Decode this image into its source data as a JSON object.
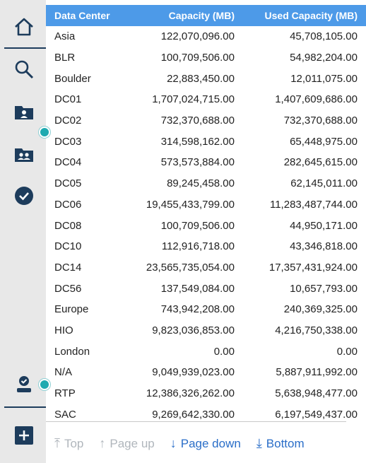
{
  "table": {
    "headers": [
      "Data Center",
      "Capacity (MB)",
      "Used Capacity (MB)"
    ],
    "rows": [
      [
        "Asia",
        "122,070,096.00",
        "45,708,105.00"
      ],
      [
        "BLR",
        "100,709,506.00",
        "54,982,204.00"
      ],
      [
        "Boulder",
        "22,883,450.00",
        "12,011,075.00"
      ],
      [
        "DC01",
        "1,707,024,715.00",
        "1,407,609,686.00"
      ],
      [
        "DC02",
        "732,370,688.00",
        "732,370,688.00"
      ],
      [
        "DC03",
        "314,598,162.00",
        "65,448,975.00"
      ],
      [
        "DC04",
        "573,573,884.00",
        "282,645,615.00"
      ],
      [
        "DC05",
        "89,245,458.00",
        "62,145,011.00"
      ],
      [
        "DC06",
        "19,455,433,799.00",
        "11,283,487,744.00"
      ],
      [
        "DC08",
        "100,709,506.00",
        "44,950,171.00"
      ],
      [
        "DC10",
        "112,916,718.00",
        "43,346,818.00"
      ],
      [
        "DC14",
        "23,565,735,054.00",
        "17,357,431,924.00"
      ],
      [
        "DC56",
        "137,549,084.00",
        "10,657,793.00"
      ],
      [
        "Europe",
        "743,942,208.00",
        "240,369,325.00"
      ],
      [
        "HIO",
        "9,823,036,853.00",
        "4,216,750,338.00"
      ],
      [
        "London",
        "0.00",
        "0.00"
      ],
      [
        "N/A",
        "9,049,939,023.00",
        "5,887,911,992.00"
      ],
      [
        "RTP",
        "12,386,326,262.00",
        "5,638,948,477.00"
      ],
      [
        "SAC",
        "9,269,642,330.00",
        "6,197,549,437.00"
      ]
    ]
  },
  "pagination": {
    "top": "Top",
    "page_up": "Page up",
    "page_down": "Page down",
    "bottom": "Bottom"
  },
  "sidebar": {
    "icons": [
      "home-icon",
      "search-icon",
      "folder-user-icon",
      "folder-group-icon",
      "check-circle-icon",
      "user-badge-icon",
      "add-icon"
    ]
  },
  "colors": {
    "header_bg": "#4d9ae8",
    "sidebar_bg": "#e8e8e8",
    "icon_color": "#1d3c5c",
    "marker": "#1eaab0",
    "link": "#2a6ec8",
    "disabled": "#b0b6bc"
  }
}
